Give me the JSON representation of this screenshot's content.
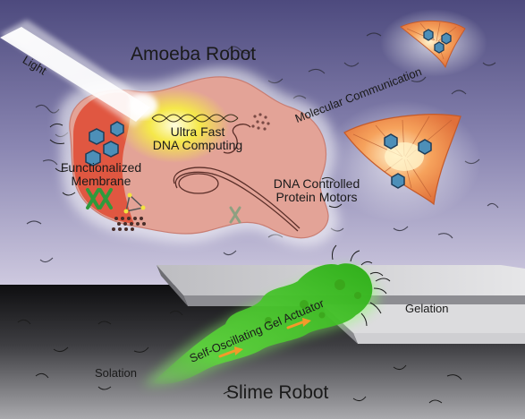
{
  "labels": {
    "amoeba_robot": "Amoeba Robot",
    "light": "Light",
    "molecular_communication": "Molecular Communication",
    "ultra_fast_dna_computing_line1": "Ultra Fast",
    "ultra_fast_dna_computing_line2": "DNA Computing",
    "functionalized_membrane_line1": "Functionalized",
    "functionalized_membrane_line2": "Membrane",
    "dna_controlled_protein_motors_line1": "DNA Controlled",
    "dna_controlled_protein_motors_line2": "Protein Motors",
    "self_oscillating_gel_actuator": "Self-Oscillating Gel Actuator",
    "gelation": "Gelation",
    "solation": "Solation",
    "slime_robot": "Slime Robot"
  },
  "colors": {
    "background_top": "#4f4c80",
    "background_mid": "#c9c4de",
    "amoeba_body": "#e3a397",
    "amoeba_membrane": "#e0503a",
    "signal_cell": "#ee8c4e",
    "slime_gel": "#4fcf2c",
    "platform": "#d6d6d8",
    "floor_dark": "#1c1c1e",
    "light_beam": "#ffffff"
  }
}
